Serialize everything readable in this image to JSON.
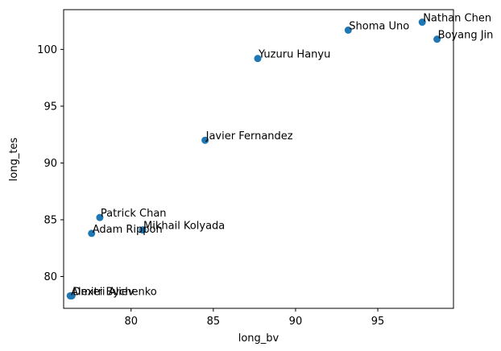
{
  "chart_data": {
    "type": "scatter",
    "xlabel": "long_bv",
    "ylabel": "long_tes",
    "xlim": [
      75.9,
      99.6
    ],
    "ylim": [
      77.2,
      103.5
    ],
    "xticks": [
      80,
      85,
      90,
      95
    ],
    "yticks": [
      80,
      85,
      90,
      95,
      100
    ],
    "grid": false,
    "marker_color": "#1f77b4",
    "points": [
      {
        "label": "Nathan Chen",
        "x": 97.7,
        "y": 102.4
      },
      {
        "label": "Shoma Uno",
        "x": 93.2,
        "y": 101.7
      },
      {
        "label": "Boyang Jin",
        "x": 98.6,
        "y": 100.9
      },
      {
        "label": "Yuzuru Hanyu",
        "x": 87.7,
        "y": 99.2
      },
      {
        "label": "Javier Fernandez",
        "x": 84.5,
        "y": 92.0
      },
      {
        "label": "Patrick Chan",
        "x": 78.1,
        "y": 85.2
      },
      {
        "label": "Mikhail Kolyada",
        "x": 80.7,
        "y": 84.1
      },
      {
        "label": "Adam Rippon",
        "x": 77.6,
        "y": 83.8
      },
      {
        "label": "Dmitri Aliev",
        "x": 76.4,
        "y": 78.3
      },
      {
        "label": "Alexei Bychenko",
        "x": 76.3,
        "y": 78.3
      }
    ]
  }
}
